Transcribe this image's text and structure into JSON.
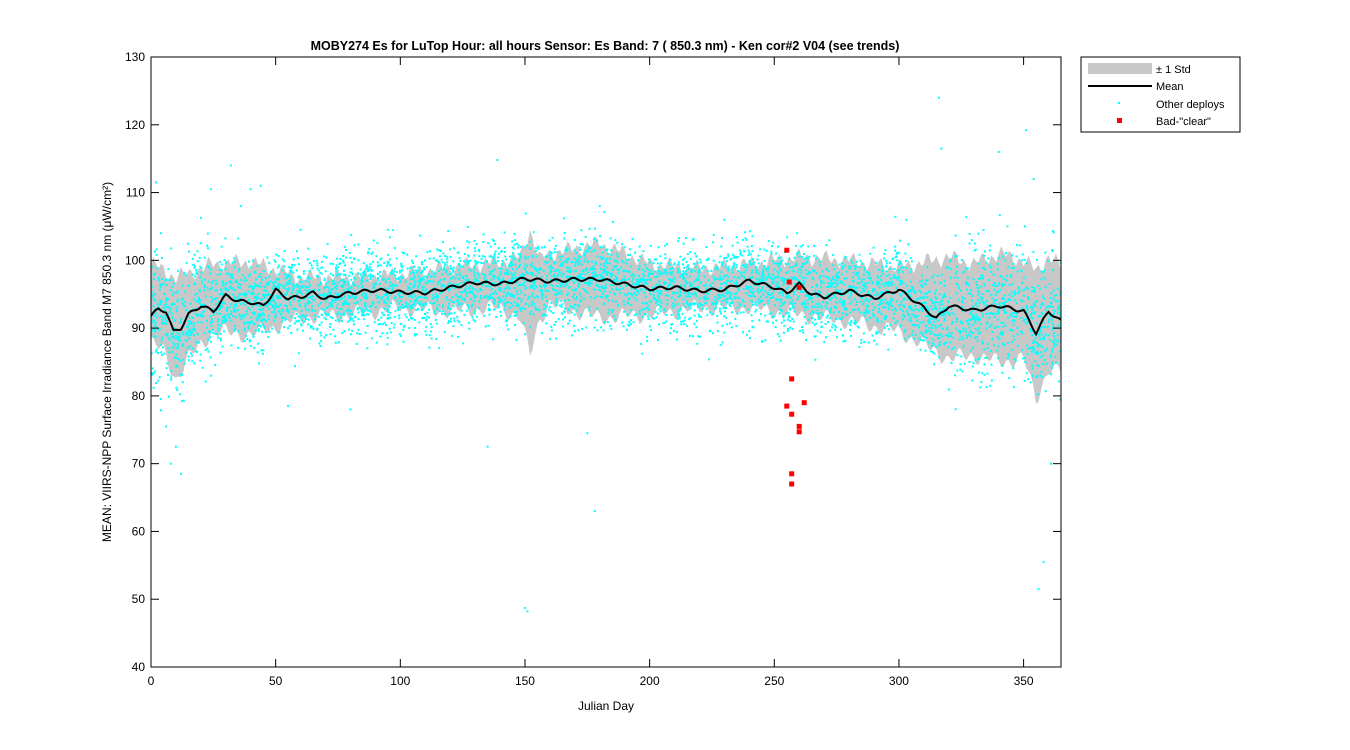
{
  "chart_data": {
    "type": "scatter",
    "title": "MOBY274   Es for LuTop  Hour: all hours  Sensor: Es Band: 7 ( 850.3 nm)  - Ken cor#2 V04 (see trends)",
    "xlabel": "Julian Day",
    "ylabel": "MEAN: VIIRS-NPP Surface Irradiance Band M7 850.3 nm (μW/cm²)",
    "xlim": [
      0,
      365
    ],
    "ylim": [
      40,
      130
    ],
    "xticks": [
      "0",
      "50",
      "100",
      "150",
      "200",
      "250",
      "300",
      "350"
    ],
    "yticks": [
      "40",
      "50",
      "60",
      "70",
      "80",
      "90",
      "100",
      "110",
      "120",
      "130"
    ],
    "grid": false,
    "legend_position": "outside-top-right",
    "legend": [
      "± 1 Std",
      "Mean",
      "Other deploys",
      "Bad-\"clear\""
    ],
    "colors": {
      "std_band": "#c8c8c8",
      "mean": "#000000",
      "other_deploys": "#00ffff",
      "bad_clear": "#ff0000"
    },
    "mean_series": {
      "x": [
        0,
        3,
        6,
        9,
        12,
        15,
        20,
        25,
        30,
        35,
        40,
        45,
        50,
        55,
        60,
        65,
        70,
        75,
        80,
        90,
        100,
        110,
        120,
        130,
        140,
        150,
        160,
        170,
        180,
        190,
        200,
        210,
        220,
        230,
        240,
        250,
        255,
        260,
        265,
        270,
        280,
        290,
        300,
        310,
        315,
        320,
        330,
        340,
        350,
        355,
        360,
        365
      ],
      "y": [
        91.8,
        92.8,
        92.5,
        89.5,
        90.0,
        92.0,
        93.3,
        92.5,
        94.8,
        94.0,
        93.8,
        93.3,
        95.6,
        94.4,
        94.6,
        95.2,
        94.3,
        94.8,
        95.2,
        95.6,
        95.3,
        95.2,
        96.0,
        96.7,
        96.5,
        97.3,
        96.9,
        97.2,
        97.2,
        96.5,
        95.8,
        96.0,
        95.5,
        95.7,
        97.0,
        96.0,
        95.2,
        96.5,
        95.0,
        94.6,
        95.5,
        94.4,
        95.7,
        93.0,
        91.4,
        93.3,
        92.6,
        93.3,
        92.5,
        89.3,
        92.5,
        91.0
      ]
    },
    "std_band": {
      "x": [
        0,
        5,
        10,
        15,
        25,
        40,
        60,
        80,
        100,
        120,
        140,
        148,
        152,
        156,
        160,
        180,
        200,
        220,
        240,
        260,
        280,
        300,
        320,
        330,
        340,
        350,
        355,
        360,
        365
      ],
      "upper": [
        99.5,
        98.5,
        97.5,
        98.0,
        99.5,
        99.8,
        97.5,
        97.5,
        98.0,
        99.0,
        99.8,
        100.5,
        104.5,
        100.0,
        101.0,
        102.5,
        99.5,
        98.8,
        99.5,
        100.5,
        100.0,
        99.0,
        100.5,
        99.5,
        101.0,
        100.0,
        98.5,
        100.5,
        99.0
      ],
      "lower": [
        88.0,
        86.5,
        82.5,
        85.5,
        89.5,
        89.0,
        91.5,
        92.0,
        93.0,
        92.5,
        93.0,
        91.5,
        86.0,
        91.5,
        93.5,
        91.5,
        92.0,
        93.0,
        93.0,
        92.0,
        91.0,
        89.5,
        85.5,
        86.0,
        85.0,
        85.5,
        79.5,
        84.0,
        83.5
      ]
    },
    "bad_clear": {
      "x": [
        255,
        256,
        255,
        257,
        257,
        260,
        262,
        260,
        260,
        257,
        257
      ],
      "y": [
        101.5,
        96.8,
        78.5,
        82.5,
        77.3,
        75.5,
        79.0,
        74.7,
        96.0,
        68.5,
        67.0
      ]
    },
    "other_deploys": {
      "noise_sd": 3.2,
      "outliers_x": [
        2,
        4,
        6,
        8,
        10,
        12,
        24,
        32,
        36,
        40,
        44,
        55,
        60,
        80,
        95,
        135,
        139,
        150,
        151,
        175,
        178,
        180,
        230,
        303,
        316,
        317,
        340,
        351,
        354,
        356,
        358,
        361
      ],
      "outliers_y": [
        111.5,
        104.0,
        75.5,
        70.0,
        72.5,
        68.5,
        110.5,
        114.0,
        108.0,
        110.5,
        111.0,
        78.5,
        104.5,
        78.0,
        104.5,
        72.5,
        114.8,
        48.7,
        48.2,
        74.5,
        63.0,
        108.0,
        106.0,
        106.0,
        124.0,
        116.5,
        116.0,
        119.2,
        112.0,
        51.5,
        55.5,
        70.0
      ]
    }
  }
}
